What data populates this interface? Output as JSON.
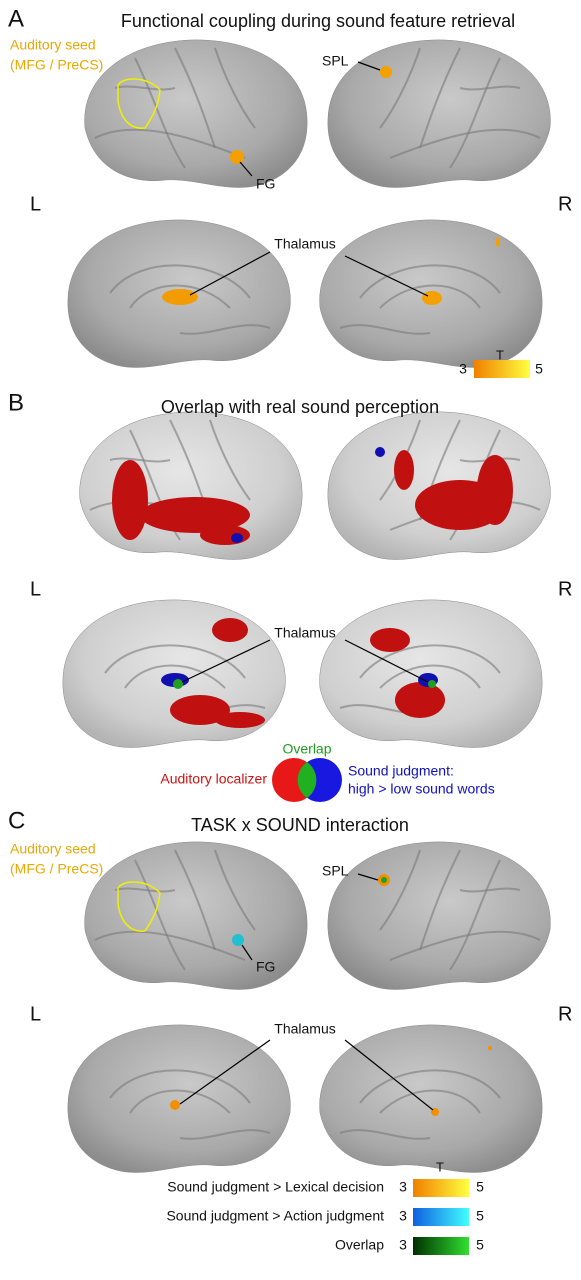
{
  "panel_a": {
    "letter": "A",
    "title": "Functional coupling during sound feature retrieval",
    "seed": {
      "name": "Auditory seed",
      "region": "(MFG / PreCS)"
    },
    "labels": {
      "spl": "SPL",
      "fg": "FG",
      "thalamus": "Thalamus"
    },
    "hemispheres": {
      "left": "L",
      "right": "R"
    },
    "colorbar": {
      "title": "T",
      "min": 3,
      "max": 5
    }
  },
  "panel_b": {
    "letter": "B",
    "title": "Overlap with real sound perception",
    "labels": {
      "thalamus": "Thalamus"
    },
    "hemispheres": {
      "left": "L",
      "right": "R"
    },
    "venn": {
      "overlap": "Overlap",
      "auditory_localizer": "Auditory localizer",
      "sound_judgment": {
        "line1": "Sound judgment:",
        "line2": "high > low sound words"
      }
    }
  },
  "panel_c": {
    "letter": "C",
    "title": "TASK x SOUND interaction",
    "seed": {
      "name": "Auditory seed",
      "region": "(MFG / PreCS)"
    },
    "labels": {
      "spl": "SPL",
      "fg": "FG",
      "thalamus": "Thalamus"
    },
    "hemispheres": {
      "left": "L",
      "right": "R"
    },
    "legend": {
      "title": "T",
      "rows": [
        {
          "label": "Sound judgment > Lexical decision",
          "min": 3,
          "max": 5
        },
        {
          "label": "Sound judgment > Action judgment",
          "min": 3,
          "max": 5
        },
        {
          "label": "Overlap",
          "min": 3,
          "max": 5
        }
      ]
    }
  }
}
